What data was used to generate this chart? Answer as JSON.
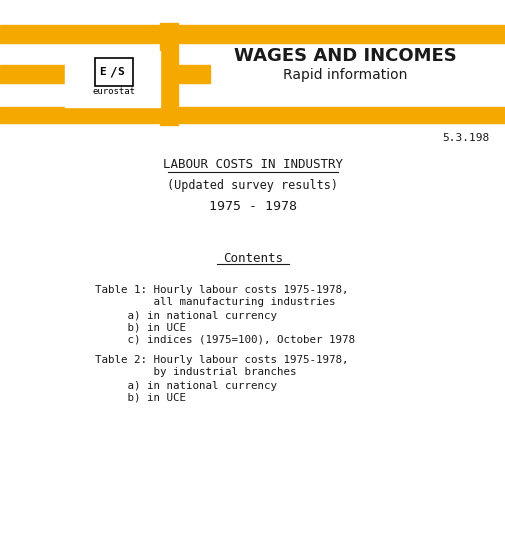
{
  "background_color": "#ffffff",
  "header_bar_color": "#F5A800",
  "title_main": "WAGES AND INCOMES",
  "title_sub": "Rapid information",
  "date_ref": "5.3.198",
  "section_title": "LABOUR COSTS IN INDUSTRY",
  "section_subtitle": "(Updated survey results)",
  "section_years": "1975 - 1978",
  "contents_title": "Contents",
  "table1_line1": "Table 1: Hourly labour costs 1975-1978,",
  "table1_line2": "         all manufacturing industries",
  "table1_a": "   a) in national currency",
  "table1_b": "   b) in UCE",
  "table1_c": "   c) indices (1975=100), October 1978",
  "table2_line1": "Table 2: Hourly labour costs 1975-1978,",
  "table2_line2": "         by industrial branches",
  "table2_a": "   a) in national currency",
  "table2_b": "   b) in UCE"
}
